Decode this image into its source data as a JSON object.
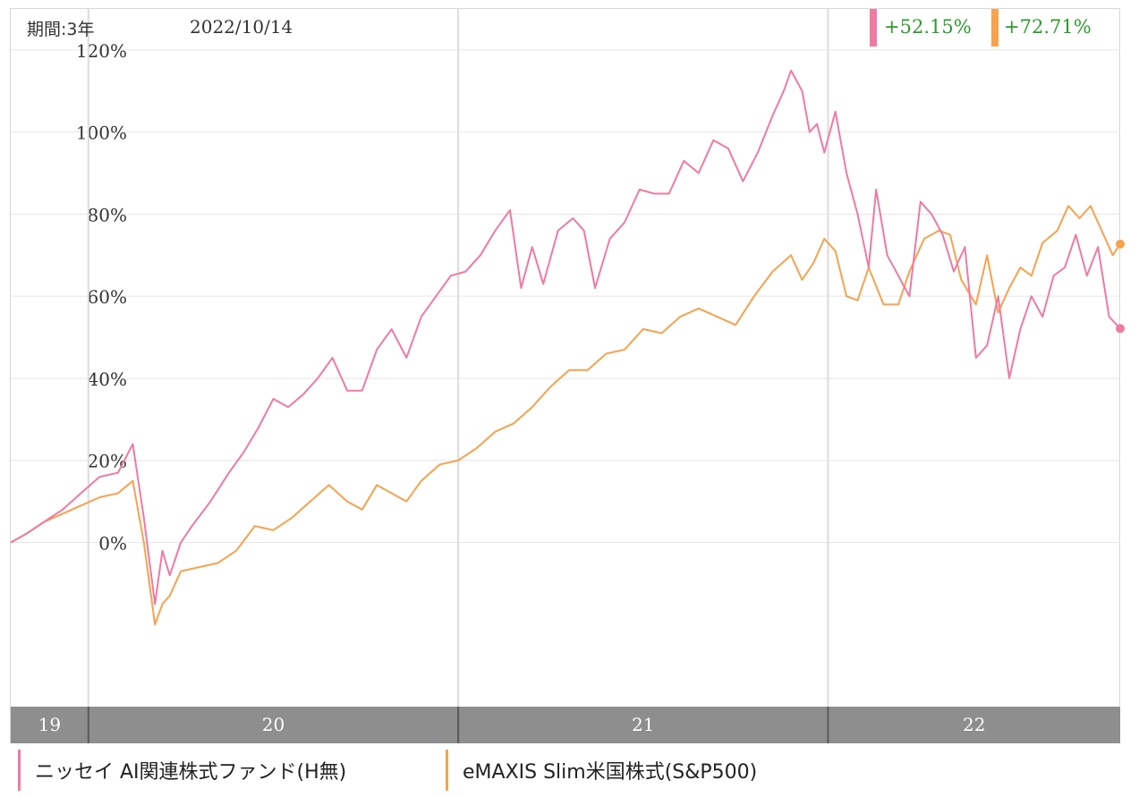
{
  "header": {
    "period_label": "期間:3年",
    "date": "2022/10/14"
  },
  "colors": {
    "series_ai": "#ef7aa2",
    "series_sp500": "#f6a24f",
    "return_text": "#2e9b2e",
    "axis_band": "#8e8e8e"
  },
  "returns": [
    {
      "series": "ニッセイ AI関連株式ファンド(H無)",
      "value": "+52.15%"
    },
    {
      "series": "eMAXIS Slim米国株式(S&P500)",
      "value": "+72.71%"
    }
  ],
  "legend": [
    {
      "label": "ニッセイ AI関連株式ファンド(H無)"
    },
    {
      "label": "eMAXIS Slim米国株式(S&P500)"
    }
  ],
  "chart_data": {
    "type": "line",
    "ylim": [
      -40,
      130
    ],
    "y_ticks": [
      "0%",
      "20%",
      "40%",
      "60%",
      "80%",
      "100%",
      "120%"
    ],
    "y_tick_values": [
      0,
      20,
      40,
      60,
      80,
      100,
      120
    ],
    "xlim": [
      2019.79,
      2022.79
    ],
    "x_year_ticks": [
      {
        "label": "19",
        "start": 2019.79,
        "end": 2020.0
      },
      {
        "label": "20",
        "start": 2020.0,
        "end": 2021.0
      },
      {
        "label": "21",
        "start": 2021.0,
        "end": 2022.0
      },
      {
        "label": "22",
        "start": 2022.0,
        "end": 2022.79
      }
    ],
    "grid": true,
    "legend_position": "bottom",
    "series": [
      {
        "name": "ニッセイ AI関連株式ファンド(H無)",
        "color": "#ef7aa2",
        "end_label": "+52.15%",
        "points": [
          [
            2019.79,
            0
          ],
          [
            2019.83,
            2
          ],
          [
            2019.88,
            5
          ],
          [
            2019.93,
            8
          ],
          [
            2019.98,
            12
          ],
          [
            2020.03,
            16
          ],
          [
            2020.08,
            17
          ],
          [
            2020.12,
            24
          ],
          [
            2020.15,
            6
          ],
          [
            2020.18,
            -15
          ],
          [
            2020.2,
            -2
          ],
          [
            2020.22,
            -8
          ],
          [
            2020.25,
            0
          ],
          [
            2020.28,
            4
          ],
          [
            2020.33,
            10
          ],
          [
            2020.38,
            17
          ],
          [
            2020.42,
            22
          ],
          [
            2020.46,
            28
          ],
          [
            2020.5,
            35
          ],
          [
            2020.54,
            33
          ],
          [
            2020.58,
            36
          ],
          [
            2020.62,
            40
          ],
          [
            2020.66,
            45
          ],
          [
            2020.7,
            37
          ],
          [
            2020.74,
            37
          ],
          [
            2020.78,
            47
          ],
          [
            2020.82,
            52
          ],
          [
            2020.86,
            45
          ],
          [
            2020.9,
            55
          ],
          [
            2020.94,
            60
          ],
          [
            2020.98,
            65
          ],
          [
            2021.02,
            66
          ],
          [
            2021.06,
            70
          ],
          [
            2021.1,
            76
          ],
          [
            2021.14,
            81
          ],
          [
            2021.17,
            62
          ],
          [
            2021.2,
            72
          ],
          [
            2021.23,
            63
          ],
          [
            2021.27,
            76
          ],
          [
            2021.31,
            79
          ],
          [
            2021.34,
            76
          ],
          [
            2021.37,
            62
          ],
          [
            2021.41,
            74
          ],
          [
            2021.45,
            78
          ],
          [
            2021.49,
            86
          ],
          [
            2021.53,
            85
          ],
          [
            2021.57,
            85
          ],
          [
            2021.61,
            93
          ],
          [
            2021.65,
            90
          ],
          [
            2021.69,
            98
          ],
          [
            2021.73,
            96
          ],
          [
            2021.77,
            88
          ],
          [
            2021.81,
            95
          ],
          [
            2021.85,
            104
          ],
          [
            2021.88,
            110
          ],
          [
            2021.9,
            115
          ],
          [
            2021.93,
            110
          ],
          [
            2021.95,
            100
          ],
          [
            2021.97,
            102
          ],
          [
            2021.99,
            95
          ],
          [
            2022.02,
            105
          ],
          [
            2022.05,
            90
          ],
          [
            2022.08,
            80
          ],
          [
            2022.11,
            67
          ],
          [
            2022.13,
            86
          ],
          [
            2022.16,
            70
          ],
          [
            2022.19,
            65
          ],
          [
            2022.22,
            60
          ],
          [
            2022.25,
            83
          ],
          [
            2022.28,
            80
          ],
          [
            2022.31,
            75
          ],
          [
            2022.34,
            66
          ],
          [
            2022.37,
            72
          ],
          [
            2022.4,
            45
          ],
          [
            2022.43,
            48
          ],
          [
            2022.46,
            60
          ],
          [
            2022.49,
            40
          ],
          [
            2022.52,
            52
          ],
          [
            2022.55,
            60
          ],
          [
            2022.58,
            55
          ],
          [
            2022.61,
            65
          ],
          [
            2022.64,
            67
          ],
          [
            2022.67,
            75
          ],
          [
            2022.7,
            65
          ],
          [
            2022.73,
            72
          ],
          [
            2022.76,
            55
          ],
          [
            2022.79,
            52.15
          ]
        ]
      },
      {
        "name": "eMAXIS Slim米国株式(S&P500)",
        "color": "#f6a24f",
        "end_label": "+72.71%",
        "points": [
          [
            2019.79,
            0
          ],
          [
            2019.83,
            2
          ],
          [
            2019.88,
            5
          ],
          [
            2019.93,
            7
          ],
          [
            2019.98,
            9
          ],
          [
            2020.03,
            11
          ],
          [
            2020.08,
            12
          ],
          [
            2020.12,
            15
          ],
          [
            2020.15,
            0
          ],
          [
            2020.18,
            -20
          ],
          [
            2020.2,
            -15
          ],
          [
            2020.22,
            -13
          ],
          [
            2020.25,
            -7
          ],
          [
            2020.3,
            -6
          ],
          [
            2020.35,
            -5
          ],
          [
            2020.4,
            -2
          ],
          [
            2020.45,
            4
          ],
          [
            2020.5,
            3
          ],
          [
            2020.55,
            6
          ],
          [
            2020.6,
            10
          ],
          [
            2020.65,
            14
          ],
          [
            2020.7,
            10
          ],
          [
            2020.74,
            8
          ],
          [
            2020.78,
            14
          ],
          [
            2020.82,
            12
          ],
          [
            2020.86,
            10
          ],
          [
            2020.9,
            15
          ],
          [
            2020.95,
            19
          ],
          [
            2021.0,
            20
          ],
          [
            2021.05,
            23
          ],
          [
            2021.1,
            27
          ],
          [
            2021.15,
            29
          ],
          [
            2021.2,
            33
          ],
          [
            2021.25,
            38
          ],
          [
            2021.3,
            42
          ],
          [
            2021.35,
            42
          ],
          [
            2021.4,
            46
          ],
          [
            2021.45,
            47
          ],
          [
            2021.5,
            52
          ],
          [
            2021.55,
            51
          ],
          [
            2021.6,
            55
          ],
          [
            2021.65,
            57
          ],
          [
            2021.7,
            55
          ],
          [
            2021.75,
            53
          ],
          [
            2021.8,
            60
          ],
          [
            2021.85,
            66
          ],
          [
            2021.9,
            70
          ],
          [
            2021.93,
            64
          ],
          [
            2021.96,
            68
          ],
          [
            2021.99,
            74
          ],
          [
            2022.02,
            71
          ],
          [
            2022.05,
            60
          ],
          [
            2022.08,
            59
          ],
          [
            2022.11,
            67
          ],
          [
            2022.15,
            58
          ],
          [
            2022.19,
            58
          ],
          [
            2022.22,
            66
          ],
          [
            2022.26,
            74
          ],
          [
            2022.3,
            76
          ],
          [
            2022.33,
            75
          ],
          [
            2022.36,
            64
          ],
          [
            2022.4,
            58
          ],
          [
            2022.43,
            70
          ],
          [
            2022.46,
            56
          ],
          [
            2022.49,
            62
          ],
          [
            2022.52,
            67
          ],
          [
            2022.55,
            65
          ],
          [
            2022.58,
            73
          ],
          [
            2022.62,
            76
          ],
          [
            2022.65,
            82
          ],
          [
            2022.68,
            79
          ],
          [
            2022.71,
            82
          ],
          [
            2022.74,
            76
          ],
          [
            2022.77,
            70
          ],
          [
            2022.79,
            72.71
          ]
        ]
      }
    ]
  }
}
